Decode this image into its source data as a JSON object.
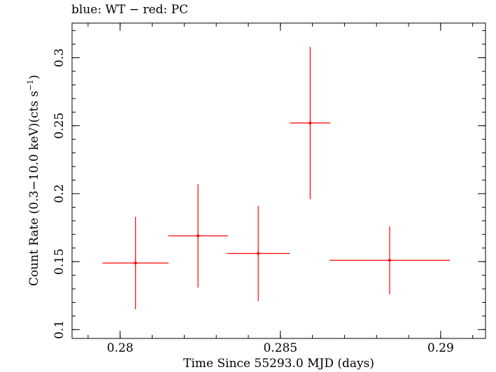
{
  "chart_data": {
    "type": "scatter",
    "title": "blue: WT − red: PC",
    "xlabel": "Time Since 55293.0 MJD (days)",
    "ylabel": {
      "main": "Count Rate (0.3−10.0 keV)(cts s",
      "sup": "−1",
      "close": ")"
    },
    "xlim": [
      0.2785,
      0.2914
    ],
    "ylim": [
      0.0935,
      0.3255
    ],
    "xticks": [
      {
        "value": 0.28,
        "label": "0.28"
      },
      {
        "value": 0.285,
        "label": "0.285"
      },
      {
        "value": 0.29,
        "label": "0.29"
      }
    ],
    "yticks": [
      {
        "value": 0.1,
        "label": "0.1"
      },
      {
        "value": 0.15,
        "label": "0.15"
      },
      {
        "value": 0.2,
        "label": "0.2"
      },
      {
        "value": 0.25,
        "label": "0.25"
      },
      {
        "value": 0.3,
        "label": "0.3"
      }
    ],
    "x_minor_step": 0.001,
    "y_minor_step": 0.01,
    "grid": false,
    "series": [
      {
        "color": "#ff0000",
        "points": [
          {
            "x": 0.28048,
            "xerr": 0.00103,
            "y": 0.149,
            "yerr": 0.034
          },
          {
            "x": 0.28243,
            "xerr": 0.00093,
            "y": 0.169,
            "yerr": 0.038
          },
          {
            "x": 0.28431,
            "xerr": 0.00098,
            "y": 0.156,
            "yerr": 0.035
          },
          {
            "x": 0.28593,
            "xerr": 0.00063,
            "y": 0.252,
            "yerr": 0.056
          },
          {
            "x": 0.28841,
            "xerr": 0.00188,
            "y": 0.151,
            "yerr": 0.025
          }
        ]
      }
    ]
  }
}
